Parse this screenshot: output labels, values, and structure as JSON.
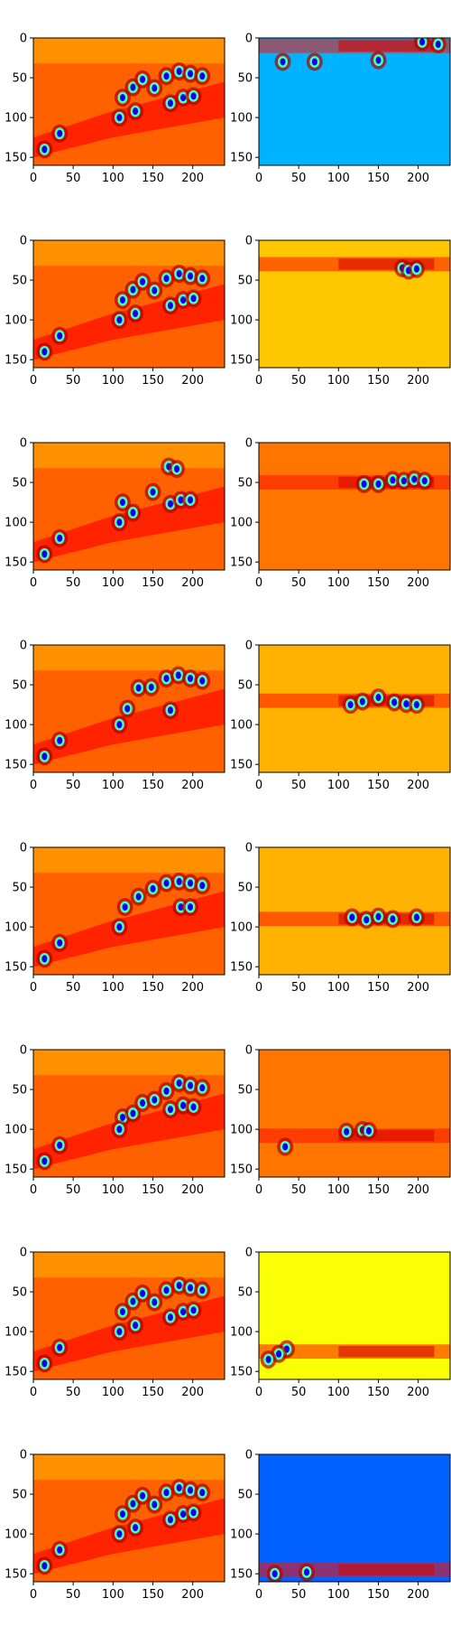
{
  "chart_data": {
    "type": "heatmap",
    "colormap": "jet",
    "layout": {
      "rows": 8,
      "cols": 2
    },
    "image_size": {
      "width": 240,
      "height": 160
    },
    "xlim": [
      0,
      240
    ],
    "ylim": [
      160,
      0
    ],
    "x_ticks": [
      0,
      50,
      100,
      150,
      200
    ],
    "y_ticks": [
      0,
      50,
      100,
      150
    ],
    "panels": [
      {
        "row": 0,
        "col": 0,
        "kind": "saliency",
        "background_value": 0.78,
        "band_center_y": null,
        "peaks": [
          [
            112,
            75
          ],
          [
            125,
            62
          ],
          [
            137,
            52
          ],
          [
            152,
            63
          ],
          [
            167,
            48
          ],
          [
            183,
            42
          ],
          [
            197,
            45
          ],
          [
            212,
            48
          ],
          [
            108,
            100
          ],
          [
            128,
            92
          ],
          [
            172,
            82
          ],
          [
            188,
            75
          ],
          [
            201,
            73
          ],
          [
            33,
            120
          ],
          [
            14,
            140
          ]
        ]
      },
      {
        "row": 0,
        "col": 1,
        "kind": "row_band",
        "background_value": 0.3,
        "band_center_y": 10,
        "peaks": [
          [
            205,
            5
          ],
          [
            225,
            8
          ],
          [
            150,
            28
          ],
          [
            70,
            30
          ],
          [
            30,
            30
          ]
        ]
      },
      {
        "row": 1,
        "col": 0,
        "kind": "saliency",
        "background_value": 0.78,
        "band_center_y": null,
        "peaks": [
          [
            112,
            75
          ],
          [
            125,
            62
          ],
          [
            137,
            52
          ],
          [
            152,
            63
          ],
          [
            167,
            48
          ],
          [
            183,
            42
          ],
          [
            197,
            45
          ],
          [
            212,
            48
          ],
          [
            108,
            100
          ],
          [
            128,
            92
          ],
          [
            172,
            82
          ],
          [
            188,
            75
          ],
          [
            201,
            73
          ],
          [
            33,
            120
          ],
          [
            14,
            140
          ]
        ]
      },
      {
        "row": 1,
        "col": 1,
        "kind": "row_band",
        "background_value": 0.68,
        "band_center_y": 30,
        "peaks": [
          [
            180,
            35
          ],
          [
            188,
            38
          ],
          [
            198,
            36
          ]
        ]
      },
      {
        "row": 2,
        "col": 0,
        "kind": "saliency",
        "background_value": 0.78,
        "band_center_y": null,
        "peaks": [
          [
            112,
            75
          ],
          [
            125,
            88
          ],
          [
            150,
            62
          ],
          [
            172,
            77
          ],
          [
            185,
            72
          ],
          [
            197,
            72
          ],
          [
            108,
            100
          ],
          [
            170,
            30
          ],
          [
            180,
            33
          ],
          [
            33,
            120
          ],
          [
            14,
            140
          ]
        ]
      },
      {
        "row": 2,
        "col": 1,
        "kind": "row_band",
        "background_value": 0.76,
        "band_center_y": 50,
        "peaks": [
          [
            132,
            52
          ],
          [
            150,
            52
          ],
          [
            168,
            47
          ],
          [
            182,
            48
          ],
          [
            195,
            46
          ],
          [
            208,
            48
          ]
        ]
      },
      {
        "row": 3,
        "col": 0,
        "kind": "saliency",
        "background_value": 0.78,
        "band_center_y": null,
        "peaks": [
          [
            118,
            80
          ],
          [
            132,
            54
          ],
          [
            148,
            53
          ],
          [
            167,
            42
          ],
          [
            182,
            38
          ],
          [
            197,
            42
          ],
          [
            212,
            45
          ],
          [
            108,
            100
          ],
          [
            172,
            82
          ],
          [
            33,
            120
          ],
          [
            14,
            140
          ]
        ]
      },
      {
        "row": 3,
        "col": 1,
        "kind": "row_band",
        "background_value": 0.7,
        "band_center_y": 70,
        "peaks": [
          [
            115,
            75
          ],
          [
            130,
            71
          ],
          [
            150,
            66
          ],
          [
            170,
            72
          ],
          [
            185,
            74
          ],
          [
            198,
            75
          ]
        ]
      },
      {
        "row": 4,
        "col": 0,
        "kind": "saliency",
        "background_value": 0.78,
        "band_center_y": null,
        "peaks": [
          [
            115,
            75
          ],
          [
            132,
            62
          ],
          [
            150,
            52
          ],
          [
            167,
            45
          ],
          [
            183,
            43
          ],
          [
            197,
            45
          ],
          [
            212,
            48
          ],
          [
            108,
            100
          ],
          [
            185,
            75
          ],
          [
            197,
            75
          ],
          [
            33,
            120
          ],
          [
            14,
            140
          ]
        ]
      },
      {
        "row": 4,
        "col": 1,
        "kind": "row_band",
        "background_value": 0.7,
        "band_center_y": 90,
        "peaks": [
          [
            117,
            88
          ],
          [
            135,
            91
          ],
          [
            150,
            87
          ],
          [
            168,
            90
          ],
          [
            198,
            88
          ]
        ]
      },
      {
        "row": 5,
        "col": 0,
        "kind": "saliency",
        "background_value": 0.78,
        "band_center_y": null,
        "peaks": [
          [
            112,
            85
          ],
          [
            125,
            80
          ],
          [
            137,
            67
          ],
          [
            152,
            63
          ],
          [
            167,
            52
          ],
          [
            183,
            42
          ],
          [
            197,
            45
          ],
          [
            212,
            48
          ],
          [
            108,
            100
          ],
          [
            172,
            75
          ],
          [
            188,
            70
          ],
          [
            201,
            72
          ],
          [
            33,
            120
          ],
          [
            14,
            140
          ]
        ]
      },
      {
        "row": 5,
        "col": 1,
        "kind": "row_band",
        "background_value": 0.76,
        "band_center_y": 108,
        "peaks": [
          [
            110,
            103
          ],
          [
            130,
            101
          ],
          [
            138,
            102
          ],
          [
            33,
            122
          ]
        ]
      },
      {
        "row": 6,
        "col": 0,
        "kind": "saliency",
        "background_value": 0.78,
        "band_center_y": null,
        "peaks": [
          [
            112,
            75
          ],
          [
            125,
            62
          ],
          [
            137,
            52
          ],
          [
            152,
            63
          ],
          [
            167,
            48
          ],
          [
            183,
            42
          ],
          [
            197,
            45
          ],
          [
            212,
            48
          ],
          [
            108,
            100
          ],
          [
            128,
            92
          ],
          [
            172,
            82
          ],
          [
            188,
            75
          ],
          [
            201,
            73
          ],
          [
            33,
            120
          ],
          [
            14,
            140
          ]
        ]
      },
      {
        "row": 6,
        "col": 1,
        "kind": "row_band",
        "background_value": 0.62,
        "band_center_y": 125,
        "peaks": [
          [
            35,
            122
          ],
          [
            25,
            128
          ],
          [
            12,
            135
          ]
        ]
      },
      {
        "row": 7,
        "col": 0,
        "kind": "saliency",
        "background_value": 0.78,
        "band_center_y": null,
        "peaks": [
          [
            112,
            75
          ],
          [
            125,
            62
          ],
          [
            137,
            52
          ],
          [
            152,
            63
          ],
          [
            167,
            48
          ],
          [
            183,
            42
          ],
          [
            197,
            45
          ],
          [
            212,
            48
          ],
          [
            108,
            100
          ],
          [
            128,
            92
          ],
          [
            172,
            82
          ],
          [
            188,
            75
          ],
          [
            201,
            73
          ],
          [
            33,
            120
          ],
          [
            14,
            140
          ]
        ]
      },
      {
        "row": 7,
        "col": 1,
        "kind": "row_band",
        "background_value": 0.22,
        "band_center_y": 145,
        "peaks": [
          [
            20,
            150
          ],
          [
            60,
            148
          ]
        ]
      }
    ]
  }
}
